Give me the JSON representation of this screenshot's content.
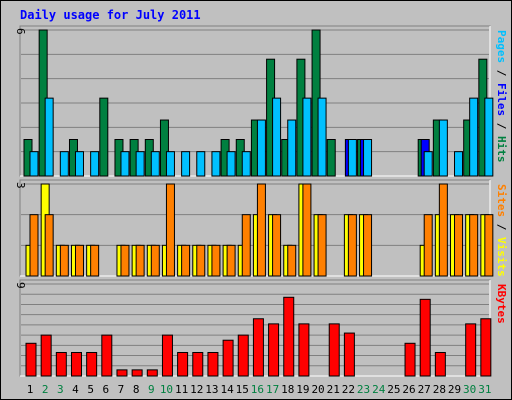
{
  "chart_data": {
    "type": "bar",
    "title": "Daily usage for July 2011",
    "categories": [
      "1",
      "2",
      "3",
      "4",
      "5",
      "6",
      "7",
      "8",
      "9",
      "10",
      "11",
      "12",
      "13",
      "14",
      "15",
      "16",
      "17",
      "18",
      "19",
      "20",
      "21",
      "22",
      "23",
      "24",
      "25",
      "26",
      "27",
      "28",
      "29",
      "30",
      "31"
    ],
    "weekend_days": [
      "2",
      "3",
      "9",
      "10",
      "16",
      "17",
      "23",
      "24",
      "30",
      "31"
    ],
    "panels": [
      {
        "id": "hits",
        "ymax_label": "6",
        "ymax": 6,
        "series": [
          {
            "name": "Hits",
            "color": "#008040",
            "values": [
              1.5,
              6,
              0,
              1.5,
              0,
              3.2,
              1.5,
              1.5,
              1.5,
              2.3,
              0,
              0,
              0,
              1.5,
              1.5,
              2.3,
              4.8,
              1.5,
              4.8,
              6,
              1.5,
              0,
              1.5,
              0,
              0,
              0,
              1.5,
              2.3,
              0,
              2.3,
              4.8
            ]
          },
          {
            "name": "Files",
            "color": "#0000ff",
            "values": [
              0,
              0,
              0,
              0,
              0,
              0,
              0,
              0,
              0,
              0,
              0,
              0,
              0,
              0,
              0,
              0,
              0,
              0,
              0,
              0,
              0,
              1.5,
              1.5,
              0,
              0,
              0,
              1.5,
              0,
              0,
              0,
              0
            ]
          },
          {
            "name": "Pages",
            "color": "#00c0ff",
            "values": [
              1,
              3.2,
              1,
              1,
              1,
              0,
              1,
              1,
              1,
              1,
              1,
              1,
              1,
              1,
              1,
              2.3,
              3.2,
              2.3,
              3.2,
              3.2,
              0,
              1.5,
              1.5,
              0,
              0,
              0,
              1,
              2.3,
              1,
              3.2,
              3.2
            ]
          }
        ],
        "labels": [
          {
            "text": "Pages",
            "color": "#00c0ff"
          },
          {
            "text": " / ",
            "color": "#000000"
          },
          {
            "text": "Files",
            "color": "#0000ff"
          },
          {
            "text": " / ",
            "color": "#000000"
          },
          {
            "text": "Hits",
            "color": "#008040"
          }
        ]
      },
      {
        "id": "visits",
        "ymax_label": "3",
        "ymax": 3,
        "series": [
          {
            "name": "Visits",
            "color": "#ffff00",
            "values": [
              1,
              3,
              1,
              1,
              1,
              0,
              1,
              1,
              1,
              1,
              1,
              1,
              1,
              1,
              1,
              2,
              2,
              1,
              3,
              2,
              0,
              2,
              2,
              0,
              0,
              0,
              1,
              2,
              2,
              2,
              2
            ]
          },
          {
            "name": "Sites",
            "color": "#ff8000",
            "values": [
              2,
              2,
              1,
              1,
              1,
              0,
              1,
              1,
              1,
              3,
              1,
              1,
              1,
              1,
              2,
              3,
              2,
              1,
              3,
              2,
              0,
              2,
              2,
              0,
              0,
              0,
              2,
              3,
              2,
              2,
              2
            ]
          }
        ],
        "labels": [
          {
            "text": "Sites",
            "color": "#ff8000"
          },
          {
            "text": " / ",
            "color": "#000000"
          },
          {
            "text": "Visits",
            "color": "#ffff00"
          }
        ]
      },
      {
        "id": "kbytes",
        "ymax_label": "9",
        "ymax": 9,
        "series": [
          {
            "name": "KBytes",
            "color": "#ff0000",
            "values": [
              3.2,
              4,
              2.3,
              2.3,
              2.3,
              4,
              0.6,
              0.6,
              0.6,
              4,
              2.3,
              2.3,
              2.3,
              3.5,
              4,
              5.6,
              5.1,
              7.7,
              5.1,
              0,
              5.1,
              4.2,
              0,
              0,
              0,
              3.2,
              7.5,
              2.3,
              0,
              5.1,
              5.6
            ]
          }
        ],
        "labels": [
          {
            "text": "KBytes",
            "color": "#ff0000"
          }
        ]
      }
    ]
  }
}
